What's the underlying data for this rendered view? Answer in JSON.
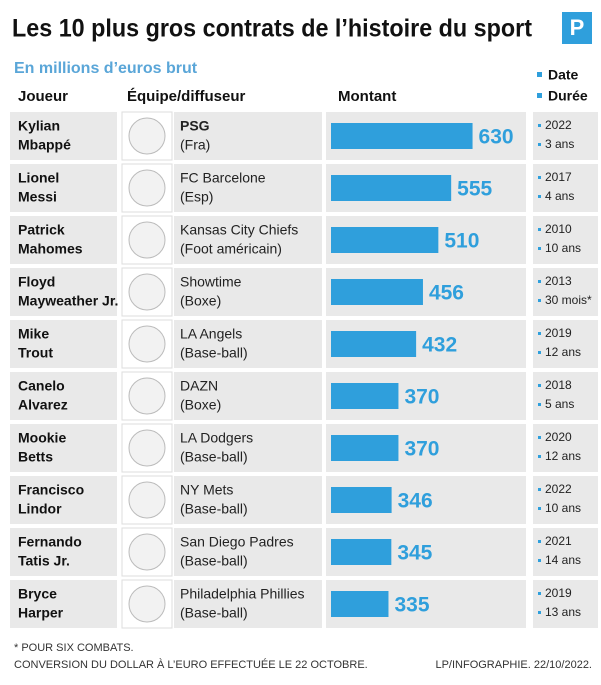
{
  "chart_data": {
    "type": "bar",
    "title": "Les 10 plus gros contrats de l’histoire du sport",
    "subtitle": "En millions d’euros brut",
    "headers": [
      "Joueur",
      "Équipe/diffuseur",
      "Montant"
    ],
    "legend": [
      "Date",
      "Durée"
    ],
    "color": "#2f9fdc",
    "categories": [
      [
        "Kylian",
        "Mbappé"
      ],
      [
        "Lionel",
        "Messi"
      ],
      [
        "Patrick",
        "Mahomes"
      ],
      [
        "Floyd",
        "Mayweather Jr."
      ],
      [
        "Mike",
        "Trout"
      ],
      [
        "Canelo",
        "Alvarez"
      ],
      [
        "Mookie",
        "Betts"
      ],
      [
        "Francisco",
        "Lindor"
      ],
      [
        "Fernando",
        "Tatis Jr."
      ],
      [
        "Bryce",
        "Harper"
      ]
    ],
    "teams": [
      [
        "PSG",
        "(Fra)"
      ],
      [
        "FC Barcelone",
        "(Esp)"
      ],
      [
        "Kansas City Chiefs",
        "(Foot américain)"
      ],
      [
        "Showtime",
        "(Boxe)"
      ],
      [
        "LA Angels",
        "(Base-ball)"
      ],
      [
        "DAZN",
        "(Boxe)"
      ],
      [
        "LA Dodgers",
        "(Base-ball)"
      ],
      [
        "NY Mets",
        "(Base-ball)"
      ],
      [
        "San Diego Padres",
        "(Base-ball)"
      ],
      [
        "Philadelphia Phillies",
        "(Base-ball)"
      ]
    ],
    "values": [
      630,
      555,
      510,
      456,
      432,
      370,
      370,
      346,
      345,
      335
    ],
    "dates": [
      "2022",
      "2017",
      "2010",
      "2013",
      "2019",
      "2018",
      "2020",
      "2022",
      "2021",
      "2019"
    ],
    "durations": [
      "3 ans",
      "4 ans",
      "10 ans",
      "30 mois*",
      "12 ans",
      "5 ans",
      "12 ans",
      "10 ans",
      "14 ans",
      "13 ans"
    ],
    "footnotes": [
      "* POUR SIX COMBATS.",
      "CONVERSION DU DOLLAR À L’EURO EFFECTUÉE LE 22 OCTOBRE."
    ],
    "credit": "LP/INFOGRAPHIE.  22/10/2022."
  }
}
